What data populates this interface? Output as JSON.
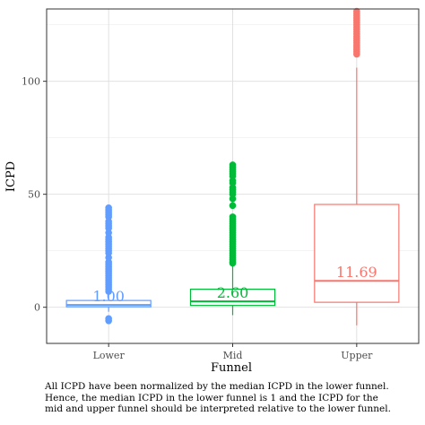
{
  "chart_data": {
    "type": "boxplot",
    "xlabel": "Funnel",
    "ylabel": "ICPD",
    "ylim": [
      -16,
      132
    ],
    "yticks": [
      0,
      50,
      100
    ],
    "grid": true,
    "categories": [
      "Lower",
      "Mid",
      "Upper"
    ],
    "boxes": [
      {
        "category": "Lower",
        "color": "#619CFF",
        "whisker_low": -2,
        "q1": 0.2,
        "median": 1.0,
        "q3": 3.0,
        "whisker_high": 5.8,
        "median_label": "1.00",
        "outliers": [
          -6,
          -5,
          7,
          8,
          9,
          10,
          11,
          12,
          13,
          14,
          15,
          16,
          17,
          18,
          19,
          20,
          22,
          24,
          25,
          26,
          27,
          28,
          29,
          30,
          31,
          33,
          35,
          36,
          37,
          38,
          40,
          41,
          42,
          43,
          44
        ]
      },
      {
        "category": "Mid",
        "color": "#00BA38",
        "whisker_low": -3.5,
        "q1": 0.8,
        "median": 2.6,
        "q3": 8.0,
        "whisker_high": 19.0,
        "median_label": "2.60",
        "outliers": [
          19.5,
          20,
          21,
          22,
          23,
          24,
          25,
          26,
          27,
          28,
          29,
          30,
          31,
          32,
          33,
          34,
          35,
          36,
          37,
          38,
          39,
          40,
          45,
          48,
          50,
          51,
          52,
          53,
          55,
          56,
          58,
          59,
          60,
          61,
          62,
          63
        ]
      },
      {
        "category": "Upper",
        "color": "#F8766D",
        "whisker_low": -8,
        "q1": 2.2,
        "median": 11.69,
        "q3": 45.5,
        "whisker_high": 106,
        "median_label": "11.69",
        "outliers": [
          112,
          113,
          114,
          115,
          116,
          117,
          118,
          119,
          120,
          121,
          122,
          123,
          124,
          125,
          126,
          127,
          128,
          129,
          130,
          131
        ]
      }
    ]
  },
  "caption": "All ICPD have been normalized by the median ICPD in the lower funnel.\nHence, the median ICPD in the lower funnel is 1 and the ICPD for the\nmid and upper funnel should be interpreted relative to the lower funnel."
}
